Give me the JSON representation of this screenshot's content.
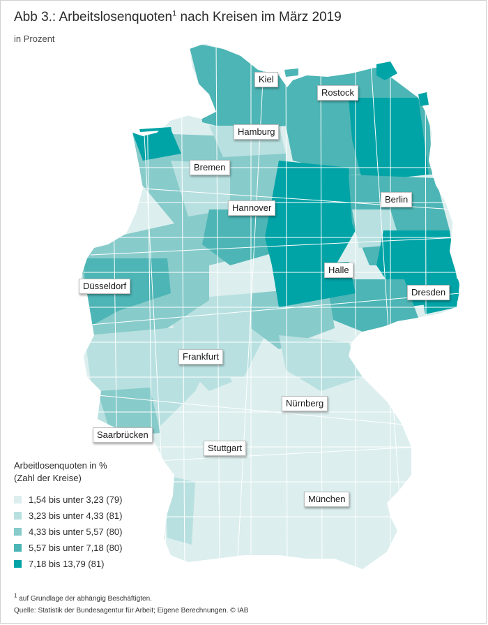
{
  "title": {
    "text_before": "Abb 3.: Arbeitslosenquoten",
    "marker": "1",
    "text_after": " nach Kreisen im März 2019"
  },
  "subtitle": "in Prozent",
  "colors": {
    "class1": "#dceeee",
    "class2": "#b9e0e0",
    "class3": "#88cbcb",
    "class4": "#4db5b5",
    "class5": "#00a3a6",
    "border": "#ffffff"
  },
  "cities": [
    {
      "name": "Kiel"
    },
    {
      "name": "Rostock"
    },
    {
      "name": "Hamburg"
    },
    {
      "name": "Bremen"
    },
    {
      "name": "Berlin"
    },
    {
      "name": "Hannover"
    },
    {
      "name": "Halle"
    },
    {
      "name": "Düsseldorf"
    },
    {
      "name": "Dresden"
    },
    {
      "name": "Frankfurt"
    },
    {
      "name": "Nürnberg"
    },
    {
      "name": "Saarbrücken"
    },
    {
      "name": "Stuttgart"
    },
    {
      "name": "München"
    }
  ],
  "legend": {
    "title_line1": "Arbeitlosenquoten in %",
    "title_line2": "(Zahl der Kreise)",
    "items": [
      {
        "label": "1,54 bis unter 3,23 (79)",
        "color": "#dceeee"
      },
      {
        "label": "3,23 bis unter 4,33 (81)",
        "color": "#b9e0e0"
      },
      {
        "label": "4,33 bis unter 5,57 (80)",
        "color": "#88cbcb"
      },
      {
        "label": "5,57 bis unter 7,18 (80)",
        "color": "#4db5b5"
      },
      {
        "label": "7,18 bis 13,79 (81)",
        "color": "#00a3a6"
      }
    ]
  },
  "footnote": {
    "marker": "1",
    "line1": " auf Grundlage der abhängig Beschäftigten.",
    "line2": "Quelle: Statistik der Bundesagentur für Arbeit; Eigene Berechnungen. © IAB"
  }
}
